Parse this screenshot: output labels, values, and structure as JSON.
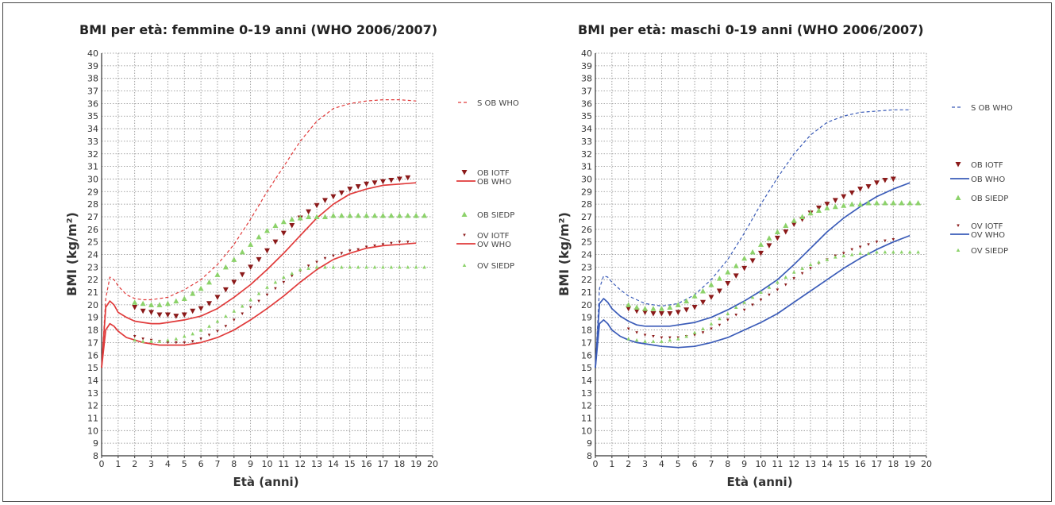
{
  "chart_data": [
    {
      "type": "scatter",
      "title": "BMI per età: femmine 0-19 anni (WHO 2006/2007)",
      "xlabel": "Età (anni)",
      "ylabel": "BMI (kg/m²)",
      "xlim": [
        0,
        20
      ],
      "ylim": [
        8,
        40
      ],
      "grid": true,
      "legend_position": "right",
      "colors": {
        "who": "#e03a3a",
        "iotf": "#8b1a1a",
        "siedp": "#8cd26a"
      },
      "series": [
        {
          "name": "S OB WHO",
          "kind": "dashed",
          "x": [
            0,
            0.25,
            0.5,
            0.75,
            1,
            1.5,
            2,
            2.5,
            3,
            4,
            5,
            6,
            7,
            8,
            9,
            10,
            11,
            12,
            13,
            14,
            15,
            16,
            17,
            18,
            19
          ],
          "y": [
            15,
            20.5,
            22.2,
            22,
            21.5,
            20.8,
            20.5,
            20.4,
            20.4,
            20.6,
            21.2,
            22,
            23.2,
            24.8,
            26.8,
            29,
            31,
            33,
            34.6,
            35.6,
            36,
            36.2,
            36.3,
            36.3,
            36.2
          ]
        },
        {
          "name": "OB IOTF",
          "kind": "triangle-down",
          "x": [
            2,
            2.5,
            3,
            3.5,
            4,
            4.5,
            5,
            5.5,
            6,
            6.5,
            7,
            7.5,
            8,
            8.5,
            9,
            9.5,
            10,
            10.5,
            11,
            11.5,
            12,
            12.5,
            13,
            13.5,
            14,
            14.5,
            15,
            15.5,
            16,
            16.5,
            17,
            17.5,
            18,
            18.5
          ],
          "y": [
            19.8,
            19.5,
            19.4,
            19.2,
            19.2,
            19.1,
            19.2,
            19.5,
            19.7,
            20.1,
            20.6,
            21.2,
            21.8,
            22.4,
            23,
            23.6,
            24.3,
            25,
            25.7,
            26.3,
            26.9,
            27.4,
            27.9,
            28.3,
            28.6,
            28.9,
            29.2,
            29.4,
            29.6,
            29.7,
            29.8,
            29.9,
            30,
            30.1
          ]
        },
        {
          "name": "OB WHO",
          "kind": "solid",
          "x": [
            0,
            0.25,
            0.5,
            0.75,
            1,
            1.5,
            2,
            2.5,
            3,
            3.5,
            4,
            4.5,
            5,
            6,
            7,
            8,
            9,
            10,
            11,
            12,
            13,
            14,
            15,
            16,
            17,
            18,
            19
          ],
          "y": [
            15,
            19.8,
            20.3,
            20,
            19.4,
            19,
            18.7,
            18.6,
            18.5,
            18.5,
            18.6,
            18.7,
            18.8,
            19.1,
            19.7,
            20.6,
            21.6,
            22.8,
            24.1,
            25.5,
            26.9,
            28,
            28.8,
            29.2,
            29.5,
            29.6,
            29.7
          ]
        },
        {
          "name": "OB SIEDP",
          "kind": "triangle-up",
          "x": [
            2,
            2.5,
            3,
            3.5,
            4,
            4.5,
            5,
            5.5,
            6,
            6.5,
            7,
            7.5,
            8,
            8.5,
            9,
            9.5,
            10,
            10.5,
            11,
            11.5,
            12,
            12.5,
            13,
            13.5,
            14,
            14.5,
            15,
            15.5,
            16,
            16.5,
            17,
            17.5,
            18,
            18.5,
            19,
            19.5
          ],
          "y": [
            20.2,
            20.1,
            20,
            20,
            20.1,
            20.3,
            20.5,
            20.9,
            21.3,
            21.8,
            22.4,
            23,
            23.6,
            24.2,
            24.8,
            25.4,
            25.9,
            26.3,
            26.6,
            26.8,
            26.9,
            27,
            27,
            27,
            27.1,
            27.1,
            27.1,
            27.1,
            27.1,
            27.1,
            27.1,
            27.1,
            27.1,
            27.1,
            27.1,
            27.1
          ]
        },
        {
          "name": "OV IOTF",
          "kind": "dot-dark",
          "x": [
            2,
            2.5,
            3,
            3.5,
            4,
            4.5,
            5,
            5.5,
            6,
            6.5,
            7,
            7.5,
            8,
            8.5,
            9,
            9.5,
            10,
            10.5,
            11,
            11.5,
            12,
            12.5,
            13,
            13.5,
            14,
            14.5,
            15,
            15.5,
            16,
            16.5,
            17,
            17.5,
            18,
            18.5
          ],
          "y": [
            17.5,
            17.3,
            17.2,
            17.1,
            17,
            17,
            17,
            17.1,
            17.3,
            17.6,
            17.9,
            18.3,
            18.8,
            19.3,
            19.8,
            20.3,
            20.8,
            21.3,
            21.8,
            22.3,
            22.7,
            23.1,
            23.4,
            23.7,
            23.9,
            24.1,
            24.3,
            24.4,
            24.6,
            24.7,
            24.8,
            24.9,
            25,
            25
          ]
        },
        {
          "name": "OV WHO",
          "kind": "solid",
          "x": [
            0,
            0.25,
            0.5,
            0.75,
            1,
            1.5,
            2,
            2.5,
            3,
            3.5,
            4,
            5,
            6,
            7,
            8,
            9,
            10,
            11,
            12,
            13,
            14,
            15,
            16,
            17,
            18,
            19
          ],
          "y": [
            15,
            18,
            18.5,
            18.3,
            17.9,
            17.4,
            17.2,
            17,
            16.9,
            16.8,
            16.8,
            16.8,
            17,
            17.4,
            18,
            18.8,
            19.7,
            20.7,
            21.8,
            22.8,
            23.6,
            24.1,
            24.5,
            24.7,
            24.8,
            24.9
          ]
        },
        {
          "name": "OV SIEDP",
          "kind": "triangle-up-small",
          "x": [
            2,
            2.5,
            3,
            3.5,
            4,
            4.5,
            5,
            5.5,
            6,
            6.5,
            7,
            7.5,
            8,
            8.5,
            9,
            9.5,
            10,
            10.5,
            11,
            11.5,
            12,
            12.5,
            13,
            13.5,
            14,
            14.5,
            15,
            15.5,
            16,
            16.5,
            17,
            17.5,
            18,
            18.5,
            19,
            19.5
          ],
          "y": [
            17.2,
            17.1,
            17.1,
            17.1,
            17.2,
            17.3,
            17.5,
            17.7,
            18,
            18.3,
            18.7,
            19.1,
            19.5,
            19.9,
            20.4,
            20.9,
            21.4,
            21.8,
            22.2,
            22.5,
            22.8,
            22.9,
            23,
            23,
            23,
            23,
            23,
            23,
            23,
            23,
            23,
            23,
            23,
            23,
            23,
            23
          ]
        }
      ]
    },
    {
      "type": "scatter",
      "title": "BMI per età: maschi 0-19 anni (WHO 2006/2007)",
      "xlabel": "Età (anni)",
      "ylabel": "BMI (kg/m²)",
      "xlim": [
        0,
        20
      ],
      "ylim": [
        8,
        40
      ],
      "grid": true,
      "legend_position": "right",
      "colors": {
        "who": "#3a5bb8",
        "iotf": "#8b1a1a",
        "siedp": "#8cd26a"
      },
      "series": [
        {
          "name": "S OB WHO",
          "kind": "dashed",
          "x": [
            0,
            0.25,
            0.5,
            0.75,
            1,
            1.5,
            2,
            2.5,
            3,
            4,
            5,
            6,
            7,
            8,
            9,
            10,
            11,
            12,
            13,
            14,
            15,
            16,
            17,
            18,
            19
          ],
          "y": [
            15,
            21.3,
            22.3,
            22.2,
            21.8,
            21.2,
            20.7,
            20.4,
            20.1,
            19.9,
            20.1,
            20.8,
            22,
            23.6,
            25.7,
            28,
            30.1,
            32,
            33.5,
            34.5,
            35,
            35.3,
            35.4,
            35.5,
            35.5
          ]
        },
        {
          "name": "OB IOTF",
          "kind": "triangle-down",
          "x": [
            2,
            2.5,
            3,
            3.5,
            4,
            4.5,
            5,
            5.5,
            6,
            6.5,
            7,
            7.5,
            8,
            8.5,
            9,
            9.5,
            10,
            10.5,
            11,
            11.5,
            12,
            12.5,
            13,
            13.5,
            14,
            14.5,
            15,
            15.5,
            16,
            16.5,
            17,
            17.5,
            18
          ],
          "y": [
            19.7,
            19.5,
            19.4,
            19.3,
            19.3,
            19.3,
            19.4,
            19.6,
            19.8,
            20.2,
            20.6,
            21.1,
            21.7,
            22.3,
            22.9,
            23.5,
            24.1,
            24.7,
            25.3,
            25.8,
            26.4,
            26.8,
            27.3,
            27.7,
            28,
            28.3,
            28.6,
            28.9,
            29.2,
            29.4,
            29.7,
            29.9,
            30
          ]
        },
        {
          "name": "OB WHO",
          "kind": "solid",
          "x": [
            0,
            0.25,
            0.5,
            0.75,
            1,
            1.5,
            2,
            2.5,
            3,
            3.5,
            4,
            4.5,
            5,
            6,
            7,
            8,
            9,
            10,
            11,
            12,
            13,
            14,
            15,
            16,
            17,
            18,
            19
          ],
          "y": [
            15,
            20.1,
            20.5,
            20.2,
            19.7,
            19.1,
            18.7,
            18.4,
            18.3,
            18.3,
            18.3,
            18.3,
            18.4,
            18.6,
            19,
            19.6,
            20.3,
            21.1,
            22,
            23.2,
            24.5,
            25.8,
            26.9,
            27.8,
            28.6,
            29.2,
            29.7
          ]
        },
        {
          "name": "OB SIEDP",
          "kind": "triangle-up",
          "x": [
            2,
            2.5,
            3,
            3.5,
            4,
            4.5,
            5,
            5.5,
            6,
            6.5,
            7,
            7.5,
            8,
            8.5,
            9,
            9.5,
            10,
            10.5,
            11,
            11.5,
            12,
            12.5,
            13,
            13.5,
            14,
            14.5,
            15,
            15.5,
            16,
            16.5,
            17,
            17.5,
            18,
            18.5,
            19,
            19.5
          ],
          "y": [
            20,
            19.8,
            19.7,
            19.7,
            19.7,
            19.8,
            20,
            20.3,
            20.7,
            21.1,
            21.6,
            22.1,
            22.6,
            23.1,
            23.7,
            24.2,
            24.8,
            25.3,
            25.8,
            26.3,
            26.7,
            27,
            27.3,
            27.5,
            27.7,
            27.8,
            27.9,
            28,
            28,
            28.1,
            28.1,
            28.1,
            28.1,
            28.1,
            28.1,
            28.1
          ]
        },
        {
          "name": "OV IOTF",
          "kind": "dot-dark",
          "x": [
            2,
            2.5,
            3,
            3.5,
            4,
            4.5,
            5,
            5.5,
            6,
            6.5,
            7,
            7.5,
            8,
            8.5,
            9,
            9.5,
            10,
            10.5,
            11,
            11.5,
            12,
            12.5,
            13,
            13.5,
            14,
            14.5,
            15,
            15.5,
            16,
            16.5,
            17,
            17.5,
            18
          ],
          "y": [
            18.1,
            17.8,
            17.6,
            17.5,
            17.4,
            17.4,
            17.4,
            17.5,
            17.6,
            17.8,
            18.1,
            18.4,
            18.8,
            19.2,
            19.6,
            20,
            20.4,
            20.8,
            21.2,
            21.6,
            22.1,
            22.5,
            22.9,
            23.3,
            23.6,
            23.9,
            24.1,
            24.4,
            24.6,
            24.8,
            25,
            25.1,
            25.2
          ]
        },
        {
          "name": "OV WHO",
          "kind": "solid",
          "x": [
            0,
            0.25,
            0.5,
            0.75,
            1,
            1.5,
            2,
            2.5,
            3,
            3.5,
            4,
            5,
            6,
            7,
            8,
            9,
            10,
            11,
            12,
            13,
            14,
            15,
            16,
            17,
            18,
            19
          ],
          "y": [
            15,
            18.5,
            18.8,
            18.5,
            18,
            17.5,
            17.2,
            17,
            16.9,
            16.8,
            16.7,
            16.6,
            16.7,
            17,
            17.4,
            18,
            18.6,
            19.3,
            20.2,
            21.1,
            22,
            22.9,
            23.7,
            24.4,
            25,
            25.5
          ]
        },
        {
          "name": "OV SIEDP",
          "kind": "triangle-up-small",
          "x": [
            2,
            2.5,
            3,
            3.5,
            4,
            4.5,
            5,
            5.5,
            6,
            6.5,
            7,
            7.5,
            8,
            8.5,
            9,
            9.5,
            10,
            10.5,
            11,
            11.5,
            12,
            12.5,
            13,
            13.5,
            14,
            14.5,
            15,
            15.5,
            16,
            16.5,
            17,
            17.5,
            18,
            18.5,
            19,
            19.5
          ],
          "y": [
            17.3,
            17.2,
            17.1,
            17.1,
            17.1,
            17.2,
            17.3,
            17.5,
            17.8,
            18.1,
            18.5,
            18.9,
            19.3,
            19.8,
            20.2,
            20.6,
            21,
            21.4,
            21.8,
            22.2,
            22.6,
            22.9,
            23.2,
            23.4,
            23.6,
            23.8,
            23.9,
            24,
            24.1,
            24.1,
            24.2,
            24.2,
            24.2,
            24.2,
            24.2,
            24.2
          ]
        }
      ]
    }
  ]
}
